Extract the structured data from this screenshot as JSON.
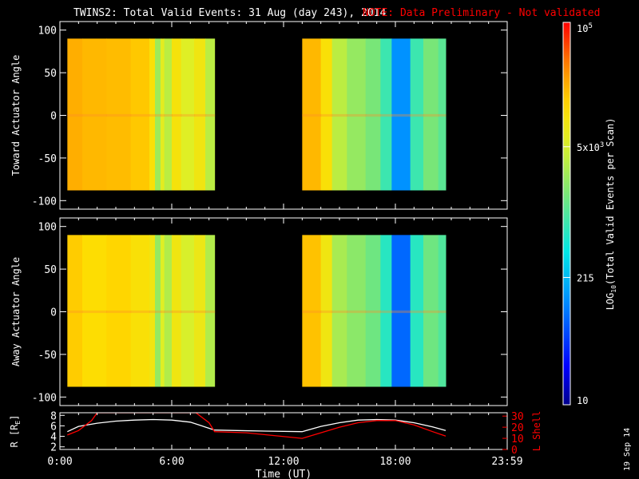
{
  "header": {
    "title": "TWINS2: Total Valid Events: 31 Aug (day 243), 2014",
    "note": "NOTE: Data Preliminary - Not validated"
  },
  "footer": {
    "date_stamp": "19 Sep 14"
  },
  "colors": {
    "background": "#000000",
    "foreground": "#ffffff",
    "note": "#ff0000",
    "lshell": "#ff0000",
    "radius": "#ffffff"
  },
  "chart_data": [
    {
      "type": "heatmap",
      "ylabel": "Toward Actuator Angle",
      "ylim": [
        -110,
        110
      ],
      "yticks": [
        100,
        50,
        0,
        -50,
        -100
      ],
      "xlim": [
        0,
        24
      ],
      "data_y_range": [
        -88,
        90
      ],
      "log_value_columns": [
        {
          "x": [
            0.4,
            1.2
          ],
          "v": 4.35
        },
        {
          "x": [
            1.2,
            2.5
          ],
          "v": 4.3
        },
        {
          "x": [
            2.5,
            3.8
          ],
          "v": 4.28
        },
        {
          "x": [
            3.8,
            4.8
          ],
          "v": 4.22
        },
        {
          "x": [
            4.8,
            5.1
          ],
          "v": 4.05
        },
        {
          "x": [
            5.1,
            5.4
          ],
          "v": 3.4
        },
        {
          "x": [
            5.4,
            5.6
          ],
          "v": 3.8
        },
        {
          "x": [
            5.6,
            6.0
          ],
          "v": 3.55
        },
        {
          "x": [
            6.0,
            6.5
          ],
          "v": 4.0
        },
        {
          "x": [
            6.5,
            7.2
          ],
          "v": 3.75
        },
        {
          "x": [
            7.2,
            7.8
          ],
          "v": 3.95
        },
        {
          "x": [
            7.8,
            8.3
          ],
          "v": 3.55
        },
        {
          "x": [
            13.0,
            14.0
          ],
          "v": 4.3
        },
        {
          "x": [
            14.0,
            14.6
          ],
          "v": 4.05
        },
        {
          "x": [
            14.6,
            15.4
          ],
          "v": 3.55
        },
        {
          "x": [
            15.4,
            16.4
          ],
          "v": 3.35
        },
        {
          "x": [
            16.4,
            17.2
          ],
          "v": 3.2
        },
        {
          "x": [
            17.2,
            17.8
          ],
          "v": 2.9
        },
        {
          "x": [
            17.8,
            18.8
          ],
          "v": 2.1
        },
        {
          "x": [
            18.8,
            19.5
          ],
          "v": 2.9
        },
        {
          "x": [
            19.5,
            20.3
          ],
          "v": 3.2
        },
        {
          "x": [
            20.3,
            20.7
          ],
          "v": 3.05
        }
      ]
    },
    {
      "type": "heatmap",
      "ylabel": "Away Actuator Angle",
      "ylim": [
        -110,
        110
      ],
      "yticks": [
        100,
        50,
        0,
        -50,
        -100
      ],
      "xlim": [
        0,
        24
      ],
      "data_y_range": [
        -88,
        90
      ],
      "log_value_columns": [
        {
          "x": [
            0.4,
            1.2
          ],
          "v": 4.2
        },
        {
          "x": [
            1.2,
            2.5
          ],
          "v": 4.1
        },
        {
          "x": [
            2.5,
            3.8
          ],
          "v": 4.15
        },
        {
          "x": [
            3.8,
            4.8
          ],
          "v": 4.05
        },
        {
          "x": [
            4.8,
            5.1
          ],
          "v": 3.95
        },
        {
          "x": [
            5.1,
            5.4
          ],
          "v": 3.35
        },
        {
          "x": [
            5.4,
            5.6
          ],
          "v": 3.75
        },
        {
          "x": [
            5.6,
            6.0
          ],
          "v": 3.5
        },
        {
          "x": [
            6.0,
            6.5
          ],
          "v": 3.95
        },
        {
          "x": [
            6.5,
            7.2
          ],
          "v": 3.7
        },
        {
          "x": [
            7.2,
            7.8
          ],
          "v": 3.9
        },
        {
          "x": [
            7.8,
            8.3
          ],
          "v": 3.5
        },
        {
          "x": [
            13.0,
            14.0
          ],
          "v": 4.25
        },
        {
          "x": [
            14.0,
            14.6
          ],
          "v": 3.95
        },
        {
          "x": [
            14.6,
            15.4
          ],
          "v": 3.45
        },
        {
          "x": [
            15.4,
            16.4
          ],
          "v": 3.3
        },
        {
          "x": [
            16.4,
            17.2
          ],
          "v": 3.15
        },
        {
          "x": [
            17.2,
            17.8
          ],
          "v": 2.8
        },
        {
          "x": [
            17.8,
            18.8
          ],
          "v": 1.9
        },
        {
          "x": [
            18.8,
            19.5
          ],
          "v": 2.8
        },
        {
          "x": [
            19.5,
            20.3
          ],
          "v": 3.15
        },
        {
          "x": [
            20.3,
            20.7
          ],
          "v": 3.0
        }
      ]
    },
    {
      "type": "line",
      "xlabel": "Time (UT)",
      "xlim": [
        0,
        24
      ],
      "xticks": [
        "0:00",
        "6:00",
        "12:00",
        "18:00",
        "23:59"
      ],
      "xtick_values": [
        0,
        6,
        12,
        18,
        24
      ],
      "ylabel_left": "R [R_E]",
      "ylabel_left_base": "R [R",
      "ylabel_left_sub": "E",
      "ylabel_left_tail": "]",
      "ylim_left": [
        1.5,
        8.5
      ],
      "yticks_left": [
        2,
        4,
        6,
        8
      ],
      "ylabel_right": "L Shell",
      "ylim_right": [
        0,
        30
      ],
      "yticks_right": [
        0,
        10,
        20,
        30
      ],
      "series": [
        {
          "name": "R",
          "axis": "left",
          "x": [
            0.4,
            1.0,
            2.0,
            3.0,
            4.0,
            5.0,
            6.0,
            7.0,
            8.3,
            9.5,
            11.0,
            13.0,
            14.0,
            15.0,
            16.0,
            17.0,
            18.0,
            19.0,
            20.0,
            20.7
          ],
          "values": [
            4.9,
            5.9,
            6.5,
            6.9,
            7.1,
            7.2,
            7.1,
            6.7,
            5.2,
            5.1,
            5.0,
            4.9,
            5.9,
            6.6,
            7.1,
            7.2,
            7.1,
            6.6,
            5.8,
            5.1
          ]
        },
        {
          "name": "L Shell",
          "axis": "right",
          "x": [
            0.4,
            1.0,
            1.7,
            2.0,
            7.3,
            8.0,
            8.3,
            10.0,
            13.0,
            14.0,
            15.0,
            16.0,
            17.0,
            18.0,
            19.0,
            20.0,
            20.7
          ],
          "values": [
            13,
            17,
            26,
            33,
            33,
            24,
            16,
            15,
            10,
            15,
            20,
            24,
            26,
            26,
            22,
            16,
            12
          ]
        }
      ]
    },
    {
      "type": "heatmap",
      "colorbar": true,
      "label_parts": [
        "LOG",
        "10",
        "(Total Valid Events per Scan)"
      ],
      "ticks": [
        {
          "value": 5,
          "label_base": "10",
          "label_sup": "5"
        },
        {
          "value": 3.699,
          "label_base": "5x10",
          "label_sup": "3"
        },
        {
          "value": 2.332,
          "label_base": "215",
          "label_sup": ""
        },
        {
          "value": 1,
          "label_base": "10",
          "label_sup": ""
        }
      ],
      "range": [
        1,
        5
      ],
      "colormap": "rainbow"
    }
  ]
}
